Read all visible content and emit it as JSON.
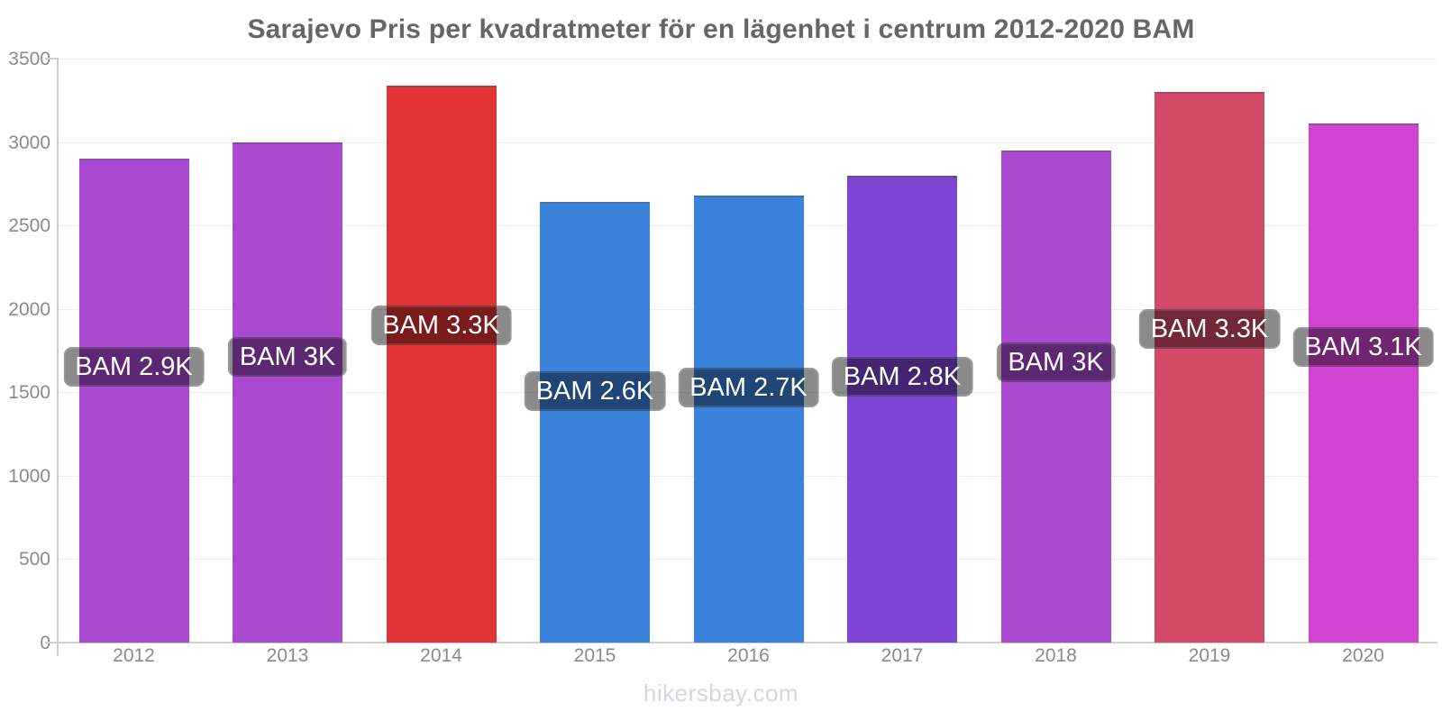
{
  "page": {
    "footer": "hikersbay.com"
  },
  "chart_data": {
    "type": "bar",
    "title": "Sarajevo Pris per kvadratmeter för en lägenhet i centrum 2012-2020 BAM",
    "categories": [
      "2012",
      "2013",
      "2014",
      "2015",
      "2016",
      "2017",
      "2018",
      "2019",
      "2020"
    ],
    "values": [
      2900,
      3000,
      3340,
      2640,
      2680,
      2800,
      2950,
      3300,
      3110
    ],
    "bar_labels": [
      "BAM 2.9K",
      "BAM 3K",
      "BAM 3.3K",
      "BAM 2.6K",
      "BAM 2.7K",
      "BAM 2.8K",
      "BAM 3K",
      "BAM 3.3K",
      "BAM 3.1K"
    ],
    "bar_colors": [
      "#a94ad1",
      "#a94ad1",
      "#e23434",
      "#3a82dc",
      "#3a82dc",
      "#7d45d1",
      "#a94ad1",
      "#d34a67",
      "#cf45cf"
    ],
    "xlabel": "",
    "ylabel": "",
    "ylim": [
      0,
      3500
    ],
    "yticks": [
      0,
      500,
      1000,
      1500,
      2000,
      2500,
      3000,
      3500
    ],
    "grid": true,
    "legend": false,
    "currency": "BAM",
    "label_text_color": "#ffffff",
    "axis_text_color": "#8a8a8a",
    "title_color": "#666666"
  }
}
